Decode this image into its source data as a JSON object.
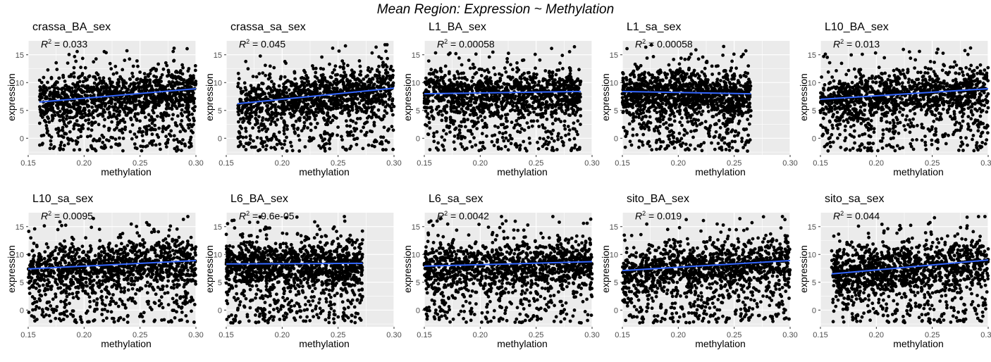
{
  "figure": {
    "title": "Mean Region: Expression ~ Methylation"
  },
  "colors": {
    "panel_bg": "#ebebeb",
    "grid": "#ffffff",
    "points": "#000000",
    "fit_line": "#3366ff",
    "tick_text": "#4d4d4d"
  },
  "chart_data": [
    {
      "type": "scatter",
      "title": "crassa_BA_sex",
      "r2_text": "= 0.033",
      "xlabel": "methylation",
      "ylabel": "expression",
      "xlim": [
        0.15,
        0.3
      ],
      "ylim": [
        -3,
        17.5
      ],
      "xticks": [
        "0.15",
        "0.20",
        "0.25",
        "0.30"
      ],
      "yticks": [
        "0",
        "5",
        "10",
        "15"
      ],
      "x_range": [
        0.16,
        0.3
      ],
      "fit": {
        "x": [
          0.16,
          0.3
        ],
        "y": [
          6.5,
          8.9
        ]
      },
      "grid": true
    },
    {
      "type": "scatter",
      "title": "crassa_sa_sex",
      "r2_text": "= 0.045",
      "xlabel": "methylation",
      "ylabel": "expression",
      "xlim": [
        0.15,
        0.3
      ],
      "ylim": [
        -3,
        17.5
      ],
      "xticks": [
        "0.15",
        "0.20",
        "0.25",
        "0.30"
      ],
      "yticks": [
        "0",
        "5",
        "10",
        "15"
      ],
      "x_range": [
        0.16,
        0.3
      ],
      "fit": {
        "x": [
          0.16,
          0.3
        ],
        "y": [
          6.2,
          9.0
        ]
      },
      "grid": true
    },
    {
      "type": "scatter",
      "title": "L1_BA_sex",
      "r2_text": "= 0.00058",
      "xlabel": "methylation",
      "ylabel": "expression",
      "xlim": [
        0.15,
        0.3
      ],
      "ylim": [
        -3,
        17.5
      ],
      "xticks": [
        "0.15",
        "0.20",
        "0.25",
        "0.30"
      ],
      "yticks": [
        "0",
        "5",
        "10",
        "15"
      ],
      "x_range": [
        0.15,
        0.29
      ],
      "fit": {
        "x": [
          0.15,
          0.29
        ],
        "y": [
          8.0,
          8.4
        ]
      },
      "grid": true
    },
    {
      "type": "scatter",
      "title": "L1_sa_sex",
      "r2_text": "= 0.00058",
      "xlabel": "methylation",
      "ylabel": "expression",
      "xlim": [
        0.15,
        0.3
      ],
      "ylim": [
        -3,
        17.5
      ],
      "xticks": [
        "0.15",
        "0.20",
        "0.25",
        "0.30"
      ],
      "yticks": [
        "0",
        "5",
        "10",
        "15"
      ],
      "x_range": [
        0.15,
        0.265
      ],
      "fit": {
        "x": [
          0.15,
          0.265
        ],
        "y": [
          8.4,
          8.0
        ]
      },
      "grid": true
    },
    {
      "type": "scatter",
      "title": "L10_BA_sex",
      "r2_text": "= 0.013",
      "xlabel": "methylation",
      "ylabel": "expression",
      "xlim": [
        0.15,
        0.3
      ],
      "ylim": [
        -3,
        17.5
      ],
      "xticks": [
        "0.15",
        "0.20",
        "0.25",
        "0.30"
      ],
      "yticks": [
        "0",
        "5",
        "10",
        "15"
      ],
      "x_range": [
        0.15,
        0.3
      ],
      "fit": {
        "x": [
          0.15,
          0.3
        ],
        "y": [
          7.0,
          8.9
        ]
      },
      "grid": true
    },
    {
      "type": "scatter",
      "title": "L10_sa_sex",
      "r2_text": "= 0.0095",
      "xlabel": "methylation",
      "ylabel": "expression",
      "xlim": [
        0.15,
        0.3
      ],
      "ylim": [
        -3,
        17.5
      ],
      "xticks": [
        "0.15",
        "0.20",
        "0.25",
        "0.30"
      ],
      "yticks": [
        "0",
        "5",
        "10",
        "15"
      ],
      "x_range": [
        0.15,
        0.3
      ],
      "fit": {
        "x": [
          0.15,
          0.3
        ],
        "y": [
          7.4,
          8.9
        ]
      },
      "grid": true
    },
    {
      "type": "scatter",
      "title": "L6_BA_sex",
      "r2_text": "= 9.6e-05",
      "xlabel": "methylation",
      "ylabel": "expression",
      "xlim": [
        0.15,
        0.3
      ],
      "ylim": [
        -3,
        17.5
      ],
      "xticks": [
        "0.15",
        "0.20",
        "0.25",
        "0.30"
      ],
      "yticks": [
        "0",
        "5",
        "10",
        "15"
      ],
      "x_range": [
        0.15,
        0.272
      ],
      "fit": {
        "x": [
          0.15,
          0.272
        ],
        "y": [
          8.3,
          8.4
        ]
      },
      "grid": true
    },
    {
      "type": "scatter",
      "title": "L6_sa_sex",
      "r2_text": "= 0.0042",
      "xlabel": "methylation",
      "ylabel": "expression",
      "xlim": [
        0.15,
        0.3
      ],
      "ylim": [
        -3,
        17.5
      ],
      "xticks": [
        "0.15",
        "0.20",
        "0.25",
        "0.30"
      ],
      "yticks": [
        "0",
        "5",
        "10",
        "15"
      ],
      "x_range": [
        0.15,
        0.3
      ],
      "fit": {
        "x": [
          0.15,
          0.3
        ],
        "y": [
          7.9,
          8.7
        ]
      },
      "grid": true
    },
    {
      "type": "scatter",
      "title": "sito_BA_sex",
      "r2_text": "= 0.019",
      "xlabel": "methylation",
      "ylabel": "expression",
      "xlim": [
        0.15,
        0.3
      ],
      "ylim": [
        -3,
        17.5
      ],
      "xticks": [
        "0.15",
        "0.20",
        "0.25",
        "0.30"
      ],
      "yticks": [
        "0",
        "5",
        "10",
        "15"
      ],
      "x_range": [
        0.15,
        0.3
      ],
      "fit": {
        "x": [
          0.15,
          0.3
        ],
        "y": [
          7.1,
          8.9
        ]
      },
      "grid": true
    },
    {
      "type": "scatter",
      "title": "sito_sa_sex",
      "r2_text": "= 0.044",
      "xlabel": "methylation",
      "ylabel": "expression",
      "xlim": [
        0.15,
        0.3
      ],
      "ylim": [
        -3,
        17.5
      ],
      "xticks": [
        "0.15",
        "0.20",
        "0.25",
        "0.30"
      ],
      "yticks": [
        "0",
        "5",
        "10",
        "15"
      ],
      "x_range": [
        0.16,
        0.3
      ],
      "fit": {
        "x": [
          0.16,
          0.3
        ],
        "y": [
          6.5,
          9.0
        ]
      },
      "grid": true
    }
  ]
}
